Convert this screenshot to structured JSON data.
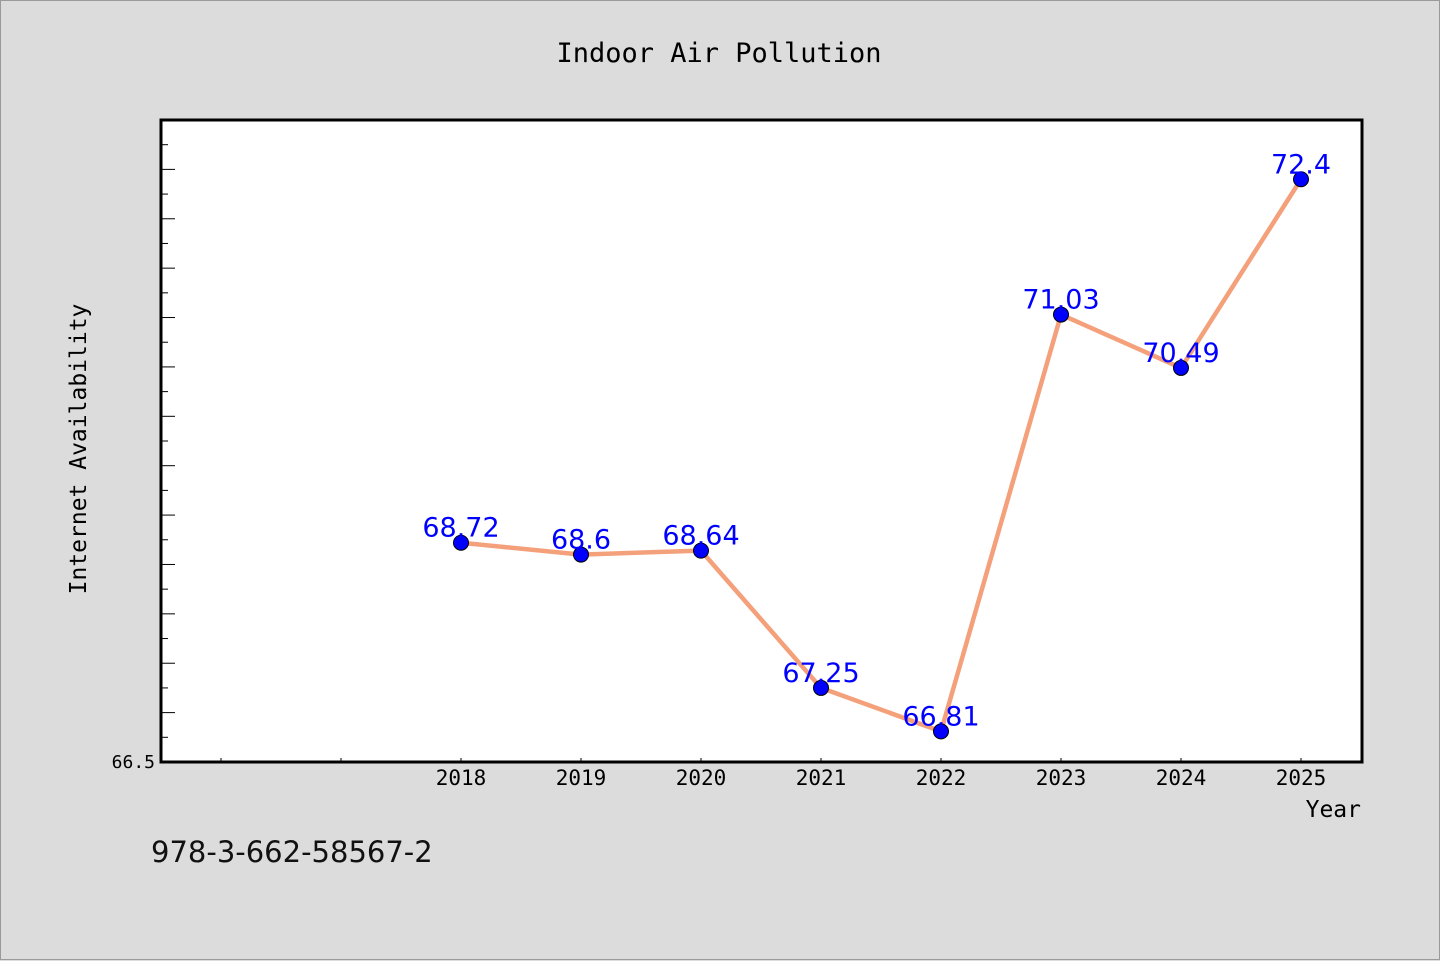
{
  "chart_data": {
    "type": "line",
    "title": "Indoor Air Pollution",
    "xlabel": "Year",
    "ylabel": "Internet Availability",
    "x": [
      "2018",
      "2019",
      "2020",
      "2021",
      "2022",
      "2023",
      "2024",
      "2025"
    ],
    "series": [
      {
        "values": [
          68.72,
          68.6,
          68.64,
          67.25,
          66.81,
          71.03,
          70.49,
          72.4
        ]
      }
    ],
    "data_labels": [
      "68.72",
      "68.6",
      "68.64",
      "67.25",
      "66.81",
      "71.03",
      "70.49",
      "72.4"
    ],
    "y_tick_labels": [
      "66.5"
    ],
    "ylim": [
      66.5,
      73.0
    ],
    "line_color": "#f4a07a",
    "marker_color": "#0000ff",
    "label_color": "#0000ff",
    "grid": false
  },
  "footer": {
    "code": "978-3-662-58567-2"
  }
}
